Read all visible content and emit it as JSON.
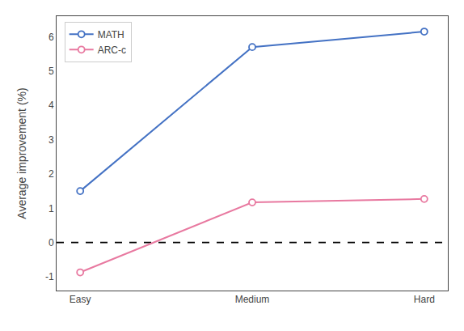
{
  "chart_data": {
    "type": "line",
    "categories": [
      "Easy",
      "Medium",
      "Hard"
    ],
    "series": [
      {
        "name": "MATH",
        "color": "#4472C4",
        "values": [
          1.5,
          5.7,
          6.15
        ]
      },
      {
        "name": "ARC-c",
        "color": "#E879A0",
        "values": [
          -0.87,
          1.17,
          1.27
        ]
      }
    ],
    "ylabel": "Average improvement (%)",
    "ylim": [
      -1.4,
      6.6
    ],
    "yticks": [
      -1,
      0,
      1,
      2,
      3,
      4,
      5,
      6
    ],
    "hline": {
      "y": 0,
      "color": "#000000",
      "line_style": "dashed"
    },
    "marker": "circle",
    "legend": "upper left",
    "grid": false
  }
}
